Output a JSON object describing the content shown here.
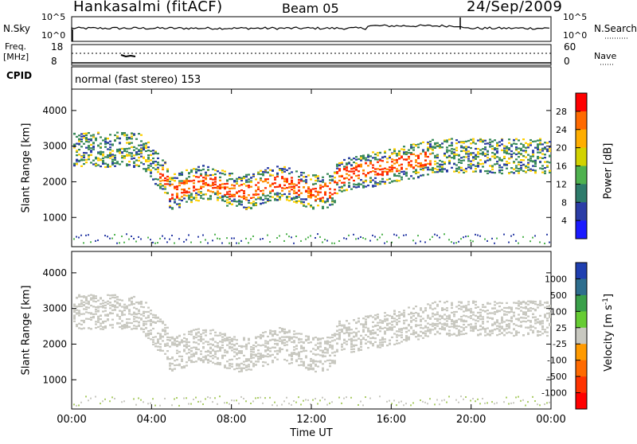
{
  "header": {
    "station": "Hankasalmi (fitACF)",
    "beam": "Beam 05",
    "date": "24/Sep/2009"
  },
  "top_panel": {
    "left_label": "N.Sky",
    "left_ticks": [
      "10^5",
      "10^0"
    ],
    "right_label": "N.Search",
    "right_ticks": [
      "10^5",
      "10^0"
    ]
  },
  "freq_panel": {
    "left_label_1": "Freq.",
    "left_label_2": "[MHz]",
    "left_ticks": [
      "18",
      "8"
    ],
    "right_label": "Nave",
    "right_ticks": [
      "60",
      "0"
    ]
  },
  "cpid": {
    "label": "CPID",
    "value": "normal (fast stereo) 153"
  },
  "chart_data": [
    {
      "type": "heatmap",
      "quantity": "Power",
      "xlabel": "",
      "ylabel": "Slant Range [km]",
      "ylim": [
        180,
        4600
      ],
      "yticks": [
        1000,
        2000,
        3000,
        4000
      ],
      "colorbar": {
        "label": "Power [dB]",
        "ticks": [
          "28",
          "24",
          "20",
          "16",
          "12",
          "8",
          "4"
        ],
        "colors": [
          "#ff0000",
          "#ff6a00",
          "#ffae00",
          "#d2d200",
          "#4fb24f",
          "#2e7b6b",
          "#2b3da6",
          "#1a1aff"
        ]
      }
    },
    {
      "type": "heatmap",
      "quantity": "Velocity",
      "xlabel": "Time UT",
      "ylabel": "Slant Range [km]",
      "ylim": [
        180,
        4600
      ],
      "yticks": [
        1000,
        2000,
        3000,
        4000
      ],
      "xticks": [
        "00:00",
        "04:00",
        "08:00",
        "12:00",
        "16:00",
        "20:00",
        "00:00"
      ],
      "colorbar": {
        "label": "Velocity [m s",
        "label_sup": "-1",
        "label_end": "]",
        "ticks": [
          "1000",
          "500",
          "100",
          "25",
          "-25",
          "-100",
          "-500",
          "-1000"
        ],
        "colors": [
          "#1f3fb0",
          "#2e6e8e",
          "#3aa04a",
          "#66cc33",
          "#c8c8c0",
          "#ff9a00",
          "#ff6a00",
          "#ff3300",
          "#ff0000"
        ]
      }
    }
  ]
}
